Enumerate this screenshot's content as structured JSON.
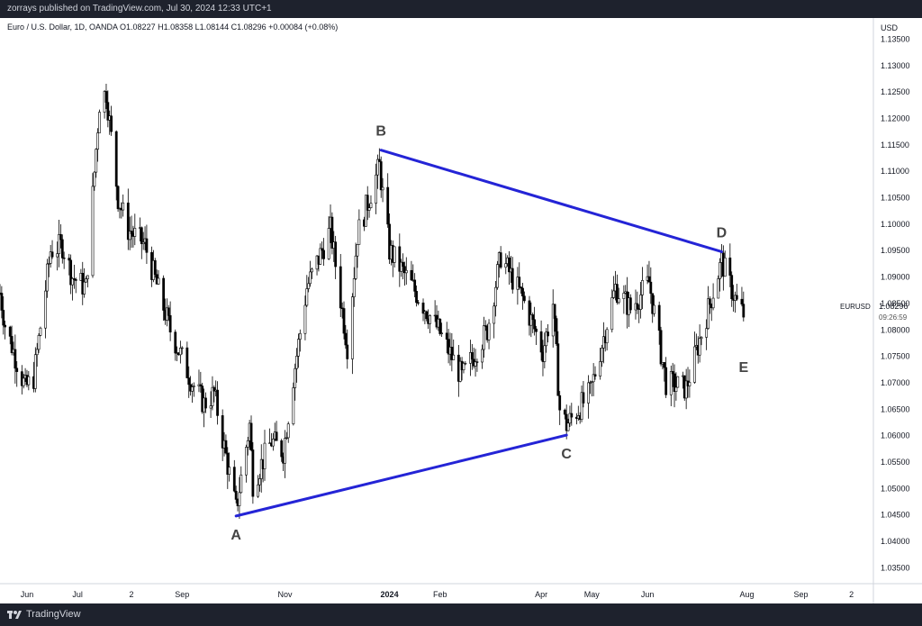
{
  "header": {
    "published_by": "zorrays published on TradingView.com, Jul 30, 2024 12:33 UTC+1"
  },
  "footer": {
    "brand": "TradingView"
  },
  "colors": {
    "candle": "#000000",
    "pattern_line": "#2424d6",
    "text": "#131722",
    "axis_text": "#131722",
    "topbar_bg": "#1e222d"
  },
  "chart_data": {
    "type": "candlestick",
    "instrument_legend": "Euro / U.S. Dollar, 1D, OANDA  O1.08227  H1.08358  L1.08144  C1.08296  +0.00084 (+0.08%)",
    "currency": "USD",
    "symbol": "EURUSD",
    "last_price": "1.08296",
    "countdown": "09:26:59",
    "y_axis": {
      "ticks": [
        "1.13500",
        "1.13000",
        "1.12500",
        "1.12000",
        "1.11500",
        "1.11000",
        "1.10500",
        "1.10000",
        "1.09500",
        "1.09000",
        "1.08500",
        "1.08000",
        "1.07500",
        "1.07000",
        "1.06500",
        "1.06000",
        "1.05500",
        "1.05000",
        "1.04500",
        "1.04000",
        "1.03500"
      ],
      "range": [
        1.032,
        1.139
      ]
    },
    "x_axis": {
      "range": [
        "2023-05-16",
        "2024-10-15"
      ],
      "ticks": [
        {
          "date": "2023-06-01",
          "label": "Jun"
        },
        {
          "date": "2023-07-01",
          "label": "Jul"
        },
        {
          "date": "2023-08-02",
          "label": "2"
        },
        {
          "date": "2023-09-01",
          "label": "Sep"
        },
        {
          "date": "2023-11-01",
          "label": "Nov"
        },
        {
          "date": "2024-01-02",
          "label": "2024"
        },
        {
          "date": "2024-02-01",
          "label": "Feb"
        },
        {
          "date": "2024-04-01",
          "label": "Apr"
        },
        {
          "date": "2024-05-01",
          "label": "May"
        },
        {
          "date": "2024-06-03",
          "label": "Jun"
        },
        {
          "date": "2024-08-01",
          "label": "Aug"
        },
        {
          "date": "2024-09-02",
          "label": "Sep"
        },
        {
          "date": "2024-10-02",
          "label": "2"
        }
      ]
    },
    "price_path": [
      [
        "2023-05-16",
        1.087
      ],
      [
        "2023-05-19",
        1.081
      ],
      [
        "2023-05-31",
        1.069
      ],
      [
        "2023-06-05",
        1.071
      ],
      [
        "2023-06-15",
        1.095
      ],
      [
        "2023-06-22",
        1.096
      ],
      [
        "2023-06-28",
        1.09
      ],
      [
        "2023-07-06",
        1.088
      ],
      [
        "2023-07-14",
        1.123
      ],
      [
        "2023-07-18",
        1.125
      ],
      [
        "2023-07-25",
        1.105
      ],
      [
        "2023-07-31",
        1.099
      ],
      [
        "2023-08-10",
        1.096
      ],
      [
        "2023-08-25",
        1.08
      ],
      [
        "2023-09-07",
        1.07
      ],
      [
        "2023-09-14",
        1.066
      ],
      [
        "2023-09-20",
        1.068
      ],
      [
        "2023-10-03",
        1.046
      ],
      [
        "2023-10-11",
        1.062
      ],
      [
        "2023-10-13",
        1.051
      ],
      [
        "2023-10-24",
        1.059
      ],
      [
        "2023-10-31",
        1.057
      ],
      [
        "2023-11-06",
        1.071
      ],
      [
        "2023-11-14",
        1.088
      ],
      [
        "2023-11-28",
        1.099
      ],
      [
        "2023-12-08",
        1.077
      ],
      [
        "2023-12-14",
        1.098
      ],
      [
        "2023-12-27",
        1.111
      ],
      [
        "2024-01-02",
        1.095
      ],
      [
        "2024-01-16",
        1.088
      ],
      [
        "2024-01-31",
        1.08
      ],
      [
        "2024-02-14",
        1.071
      ],
      [
        "2024-02-29",
        1.08
      ],
      [
        "2024-03-08",
        1.094
      ],
      [
        "2024-03-21",
        1.086
      ],
      [
        "2024-04-02",
        1.076
      ],
      [
        "2024-04-08",
        1.085
      ],
      [
        "2024-04-12",
        1.065
      ],
      [
        "2024-04-16",
        1.062
      ],
      [
        "2024-04-30",
        1.068
      ],
      [
        "2024-05-15",
        1.088
      ],
      [
        "2024-05-24",
        1.084
      ],
      [
        "2024-06-04",
        1.089
      ],
      [
        "2024-06-14",
        1.07
      ],
      [
        "2024-06-26",
        1.069
      ],
      [
        "2024-07-17",
        1.093
      ],
      [
        "2024-07-26",
        1.085
      ],
      [
        "2024-07-30",
        1.083
      ]
    ],
    "annotations": {
      "lines": [
        {
          "from": "A",
          "to": "B"
        },
        {
          "from": "B",
          "to": "D"
        },
        {
          "from": "A",
          "to": "C"
        }
      ],
      "points": [
        {
          "label": "A",
          "date": "2023-10-03",
          "price": 1.0448,
          "label_pos": "below"
        },
        {
          "label": "B",
          "date": "2023-12-28",
          "price": 1.114,
          "label_pos": "above"
        },
        {
          "label": "C",
          "date": "2024-04-16",
          "price": 1.0601,
          "label_pos": "below"
        },
        {
          "label": "D",
          "date": "2024-07-17",
          "price": 1.0948,
          "label_pos": "above"
        },
        {
          "label": "E",
          "date": "2024-07-30",
          "price": 1.0765,
          "label_pos": "below"
        }
      ],
      "drawn_lines": [
        [
          "A",
          "C"
        ],
        [
          "B",
          "D"
        ]
      ]
    }
  }
}
